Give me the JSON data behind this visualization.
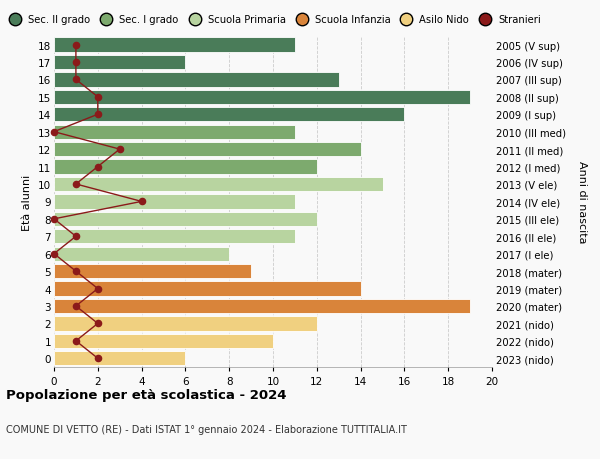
{
  "ages": [
    18,
    17,
    16,
    15,
    14,
    13,
    12,
    11,
    10,
    9,
    8,
    7,
    6,
    5,
    4,
    3,
    2,
    1,
    0
  ],
  "right_labels": [
    "2005 (V sup)",
    "2006 (IV sup)",
    "2007 (III sup)",
    "2008 (II sup)",
    "2009 (I sup)",
    "2010 (III med)",
    "2011 (II med)",
    "2012 (I med)",
    "2013 (V ele)",
    "2014 (IV ele)",
    "2015 (III ele)",
    "2016 (II ele)",
    "2017 (I ele)",
    "2018 (mater)",
    "2019 (mater)",
    "2020 (mater)",
    "2021 (nido)",
    "2022 (nido)",
    "2023 (nido)"
  ],
  "bar_values": [
    11,
    6,
    13,
    19,
    16,
    11,
    14,
    12,
    15,
    11,
    12,
    11,
    8,
    9,
    14,
    19,
    12,
    10,
    6
  ],
  "bar_colors": [
    "#4a7c59",
    "#4a7c59",
    "#4a7c59",
    "#4a7c59",
    "#4a7c59",
    "#7daa6e",
    "#7daa6e",
    "#7daa6e",
    "#b8d4a0",
    "#b8d4a0",
    "#b8d4a0",
    "#b8d4a0",
    "#b8d4a0",
    "#d9843a",
    "#d9843a",
    "#d9843a",
    "#f0d080",
    "#f0d080",
    "#f0d080"
  ],
  "stranieri_x": [
    1,
    1,
    1,
    2,
    2,
    0,
    3,
    2,
    1,
    4,
    0,
    1,
    0,
    1,
    2,
    1,
    2,
    1,
    2
  ],
  "stranieri_color": "#8b1a1a",
  "legend_labels": [
    "Sec. II grado",
    "Sec. I grado",
    "Scuola Primaria",
    "Scuola Infanzia",
    "Asilo Nido",
    "Stranieri"
  ],
  "legend_colors": [
    "#4a7c59",
    "#7daa6e",
    "#b8d4a0",
    "#d9843a",
    "#f0d080",
    "#8b1a1a"
  ],
  "title": "Popolazione per età scolastica - 2024",
  "subtitle": "COMUNE DI VETTO (RE) - Dati ISTAT 1° gennaio 2024 - Elaborazione TUTTITALIA.IT",
  "ylabel_left": "Età alunni",
  "ylabel_right": "Anni di nascita",
  "xlim": [
    0,
    20
  ],
  "xticks": [
    0,
    2,
    4,
    6,
    8,
    10,
    12,
    14,
    16,
    18,
    20
  ],
  "background_color": "#f9f9f9",
  "grid_color": "#cccccc",
  "bar_height": 0.82
}
